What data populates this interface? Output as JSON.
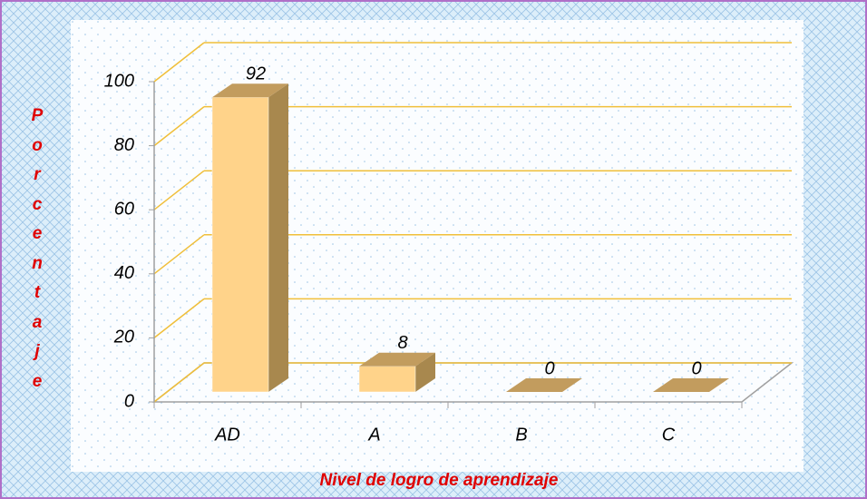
{
  "chart_data": {
    "type": "bar3d",
    "categories": [
      "AD",
      "A",
      "B",
      "C"
    ],
    "values": [
      92,
      8,
      0,
      0
    ],
    "ylim": [
      0,
      100
    ],
    "yticks": [
      0,
      20,
      40,
      60,
      80,
      100
    ],
    "y_label": "Porcentaje",
    "x_label": "Nivel de logro de aprendizaje",
    "color": "#ffd38a",
    "grid": true,
    "grid_color": "#f0bf3a"
  }
}
